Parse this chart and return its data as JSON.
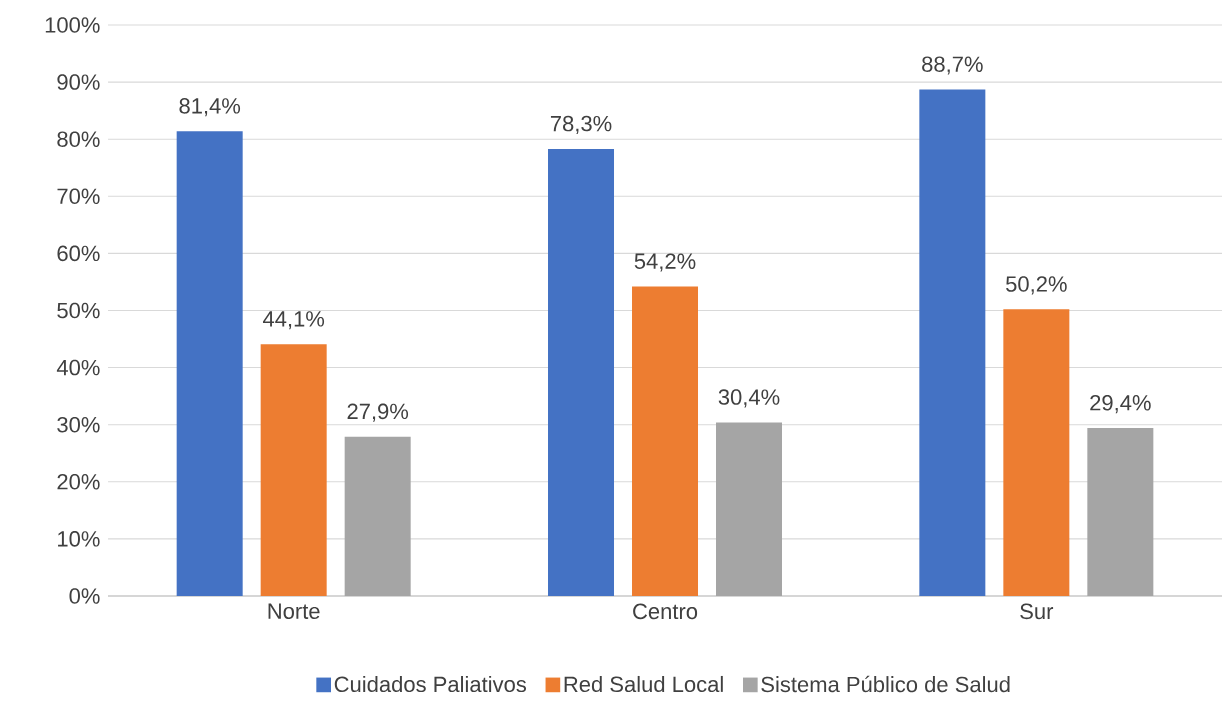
{
  "chart_data": {
    "type": "bar",
    "categories": [
      "Norte",
      "Centro",
      "Sur"
    ],
    "series": [
      {
        "name": "Cuidados Paliativos",
        "color": "#4472c4",
        "values": [
          81.4,
          78.3,
          88.7
        ],
        "value_labels": [
          "81,4%",
          "78,3%",
          "88,7%"
        ]
      },
      {
        "name": "Red Salud Local",
        "color": "#ed7d31",
        "values": [
          44.1,
          54.2,
          50.2
        ],
        "value_labels": [
          "44,1%",
          "54,2%",
          "50,2%"
        ]
      },
      {
        "name": "Sistema Público de Salud",
        "color": "#a5a5a5",
        "values": [
          27.9,
          30.4,
          29.4
        ],
        "value_labels": [
          "27,9%",
          "30,4%",
          "29,4%"
        ]
      }
    ],
    "ylim": [
      0,
      100
    ],
    "yticks": [
      {
        "value": 0,
        "label": "0%"
      },
      {
        "value": 10,
        "label": "10%"
      },
      {
        "value": 20,
        "label": "20%"
      },
      {
        "value": 30,
        "label": "30%"
      },
      {
        "value": 40,
        "label": "40%"
      },
      {
        "value": 50,
        "label": "50%"
      },
      {
        "value": 60,
        "label": "60%"
      },
      {
        "value": 70,
        "label": "70%"
      },
      {
        "value": 80,
        "label": "80%"
      },
      {
        "value": 90,
        "label": "90%"
      },
      {
        "value": 100,
        "label": "100%"
      }
    ],
    "grid": "y",
    "legend": "bottom"
  }
}
